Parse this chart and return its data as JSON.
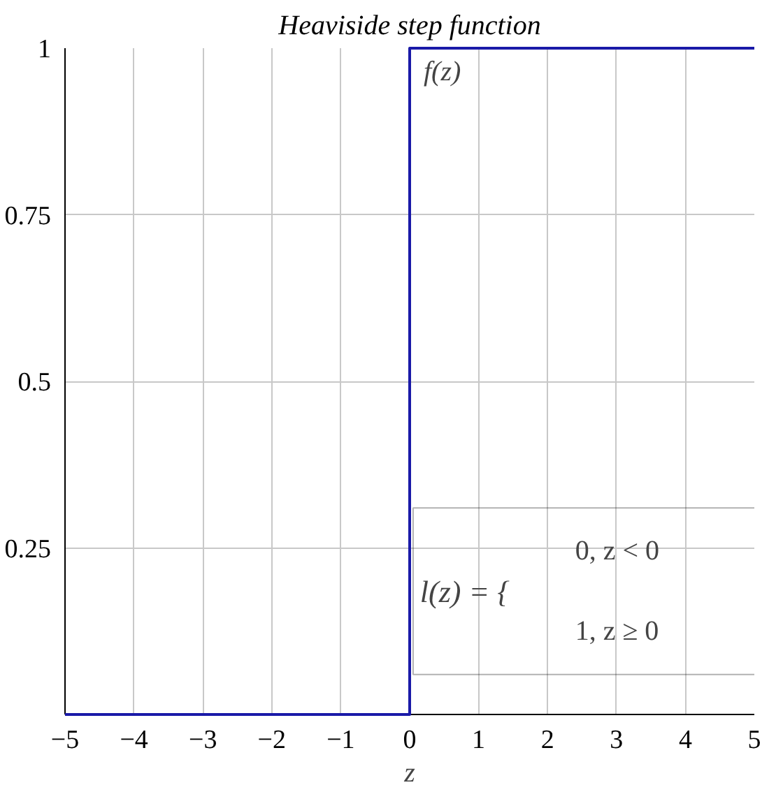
{
  "chart_data": {
    "type": "line",
    "title": "Heaviside step function",
    "xlabel": "z",
    "ylabel": "f(z)",
    "x": [
      -5,
      0,
      0,
      5
    ],
    "series": [
      {
        "color": "#1a1aa8",
        "values": [
          0,
          0,
          1,
          1
        ]
      }
    ],
    "xlim": [
      -5,
      5
    ],
    "ylim": [
      0,
      1
    ],
    "xticks": [
      {
        "value": -5,
        "label": "−5"
      },
      {
        "value": -4,
        "label": "−4"
      },
      {
        "value": -3,
        "label": "−3"
      },
      {
        "value": -2,
        "label": "−2"
      },
      {
        "value": -1,
        "label": "−1"
      },
      0,
      1,
      2,
      3,
      4,
      5
    ],
    "yticks": [
      0.25,
      0.5,
      0.75,
      1
    ],
    "grid": true,
    "annotations": [
      "l(z) = {",
      "0,   z < 0",
      "1,   z ≥ 0"
    ]
  }
}
